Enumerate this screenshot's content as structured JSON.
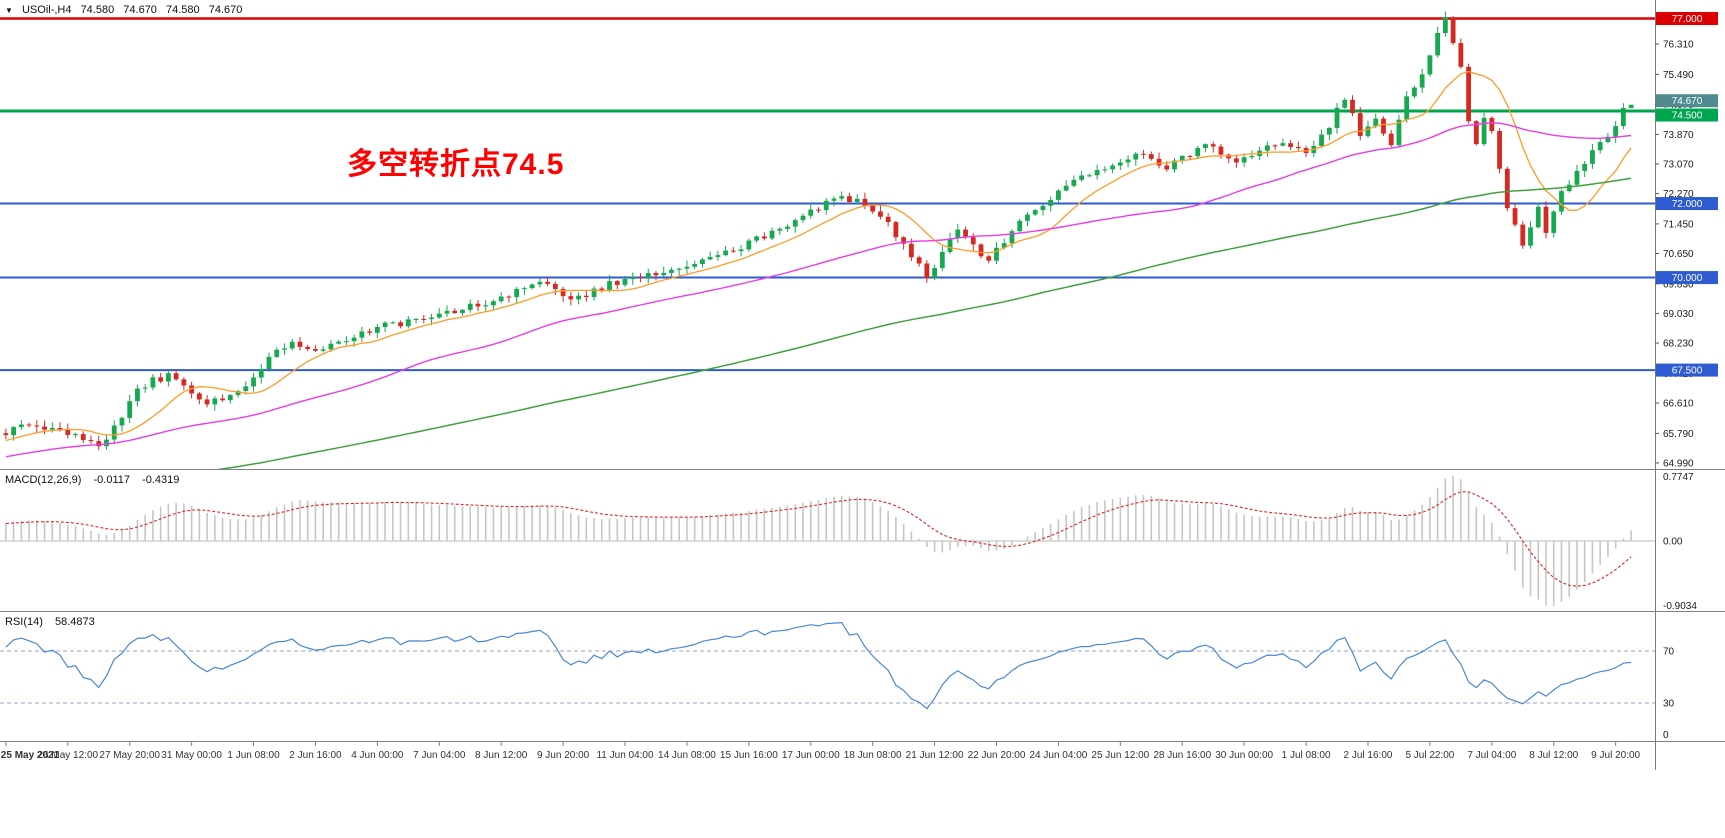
{
  "window": {
    "dropdown_icon": "▼",
    "symbol_timeframe": "USOil-,H4",
    "ohlc": {
      "open": "74.580",
      "high": "74.670",
      "low": "74.580",
      "close": "74.670"
    }
  },
  "chart_data": {
    "type": "candlestick",
    "symbol": "USOil-",
    "timeframe": "H4",
    "annotation": {
      "text": "多空转折点74.5",
      "color": "#ff0000"
    },
    "price_axis": {
      "max": 77.5,
      "min": 64.8,
      "ticks": [
        "76.310",
        "75.490",
        "74.670",
        "73.870",
        "73.070",
        "72.270",
        "71.450",
        "70.650",
        "69.830",
        "69.030",
        "68.230",
        "67.410",
        "66.610",
        "65.790",
        "64.990"
      ]
    },
    "levels": [
      {
        "price": 77.0,
        "label": "77.000",
        "color": "#dd0000",
        "width": 2.4
      },
      {
        "price": 74.5,
        "label": "74.500",
        "color": "#00a550",
        "width": 3
      },
      {
        "price": 72.0,
        "label": "72.000",
        "color": "#2e5bd0",
        "width": 2
      },
      {
        "price": 70.0,
        "label": "70.000",
        "color": "#2e5bd0",
        "width": 2
      },
      {
        "price": 67.5,
        "label": "67.500",
        "color": "#2e5bd0",
        "width": 2
      }
    ],
    "current_price": {
      "value": 74.67,
      "label": "74.670",
      "badge_color": "#4e8a8e"
    },
    "candles": {
      "count": 211,
      "seed": 20210709,
      "label_every": 8,
      "up_color": "#17a94f",
      "down_color": "#d42a22",
      "last": {
        "o": 74.58,
        "h": 74.67,
        "l": 74.58,
        "c": 74.67
      },
      "prehistory": {
        "bars": 130,
        "start_price": 61.8
      },
      "close_waypoints": [
        [
          0,
          65.85
        ],
        [
          4,
          66.05
        ],
        [
          8,
          65.75
        ],
        [
          12,
          65.45
        ],
        [
          14,
          65.95
        ],
        [
          17,
          67.05
        ],
        [
          21,
          67.35
        ],
        [
          26,
          66.55
        ],
        [
          30,
          66.95
        ],
        [
          34,
          67.75
        ],
        [
          37,
          68.35
        ],
        [
          40,
          67.95
        ],
        [
          45,
          68.45
        ],
        [
          52,
          68.85
        ],
        [
          58,
          69.15
        ],
        [
          64,
          69.45
        ],
        [
          69,
          69.95
        ],
        [
          73,
          69.35
        ],
        [
          78,
          69.85
        ],
        [
          84,
          70.05
        ],
        [
          90,
          70.45
        ],
        [
          96,
          70.95
        ],
        [
          102,
          71.55
        ],
        [
          108,
          72.25
        ],
        [
          112,
          71.85
        ],
        [
          116,
          70.95
        ],
        [
          119,
          70.05
        ],
        [
          123,
          71.25
        ],
        [
          127,
          70.45
        ],
        [
          131,
          71.45
        ],
        [
          136,
          72.35
        ],
        [
          141,
          72.95
        ],
        [
          146,
          73.35
        ],
        [
          150,
          72.95
        ],
        [
          155,
          73.55
        ],
        [
          159,
          73.15
        ],
        [
          164,
          73.65
        ],
        [
          168,
          73.35
        ],
        [
          171,
          74.1
        ],
        [
          173,
          74.9
        ],
        [
          175,
          73.8
        ],
        [
          177,
          74.3
        ],
        [
          179,
          73.6
        ],
        [
          181,
          74.9
        ],
        [
          183,
          75.4
        ],
        [
          185,
          76.5
        ],
        [
          186,
          77.0
        ],
        [
          188,
          75.6
        ],
        [
          189,
          74.3
        ],
        [
          190,
          73.6
        ],
        [
          191,
          74.35
        ],
        [
          192,
          73.9
        ],
        [
          194,
          71.9
        ],
        [
          196,
          70.95
        ],
        [
          198,
          71.85
        ],
        [
          199,
          71.3
        ],
        [
          201,
          72.3
        ],
        [
          204,
          73.1
        ],
        [
          207,
          73.8
        ],
        [
          209,
          74.45
        ],
        [
          210,
          74.67
        ]
      ]
    },
    "moving_averages": [
      {
        "name": "ma-fast",
        "period": 10,
        "color": "#ff9c28",
        "width": 1.3
      },
      {
        "name": "ma-mid",
        "period": 40,
        "color": "#ea3cea",
        "width": 1.4
      },
      {
        "name": "ma-slow",
        "period": 120,
        "color": "#3fa23f",
        "width": 1.5
      }
    ],
    "macd": {
      "label": "MACD(12,26,9)",
      "value_main": "-0.0117",
      "value_signal": "-0.4319",
      "fast": 12,
      "slow": 26,
      "signal": 9,
      "scale_top": "0.7747",
      "scale_zero": "0.00",
      "scale_bottom": "-0.9034",
      "histogram_color": "#c6c6c6",
      "signal_color": "#e02828"
    },
    "rsi": {
      "label": "RSI(14)",
      "value": "58.4873",
      "period": 14,
      "line_color": "#4a86d8",
      "level_values": [
        70,
        30
      ],
      "scale_bottom": "0"
    },
    "time_axis": [
      "25 May 2021",
      "26 May 12:00",
      "27 May 20:00",
      "31 May 00:00",
      "1 Jun 08:00",
      "2 Jun 16:00",
      "4 Jun 00:00",
      "7 Jun 04:00",
      "8 Jun 12:00",
      "9 Jun 20:00",
      "11 Jun 04:00",
      "14 Jun 08:00",
      "15 Jun 16:00",
      "17 Jun 00:00",
      "18 Jun 08:00",
      "21 Jun 12:00",
      "22 Jun 20:00",
      "24 Jun 04:00",
      "25 Jun 12:00",
      "28 Jun 16:00",
      "30 Jun 00:00",
      "1 Jul 08:00",
      "2 Jul 16:00",
      "5 Jul 22:00",
      "7 Jul 04:00",
      "8 Jul 12:00",
      "9 Jul 20:00"
    ]
  }
}
